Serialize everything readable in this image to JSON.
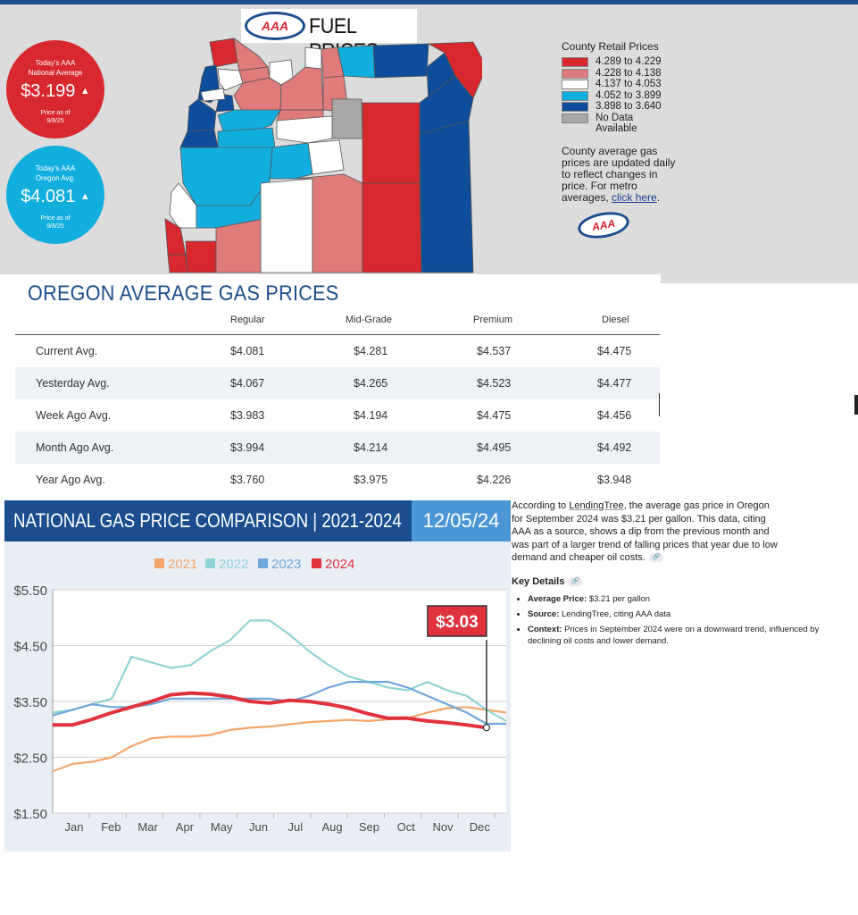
{
  "map_panel": {
    "title": "FUEL PRICES",
    "aaa_logo_text": "AAA",
    "national": {
      "label_line1": "Today's AAA",
      "label_line2": "National Average",
      "value": "$3.199",
      "asof_line1": "Price as of",
      "asof_line2": "9/8/25",
      "color": "#d7282f",
      "trend": "up"
    },
    "oregon": {
      "label_line1": "Today's AAA",
      "label_line2": "Oregon Avg.",
      "value": "$4.081",
      "asof_line1": "Price as of",
      "asof_line2": "9/8/25",
      "color": "#12aede",
      "trend": "up"
    },
    "legend": {
      "title": "County Retail Prices",
      "items": [
        {
          "label": "4.289 to 4.229",
          "color": "#d7282f"
        },
        {
          "label": "4.228 to 4.138",
          "color": "#e07b7b"
        },
        {
          "label": "4.137 to 4.053",
          "color": "#ffffff"
        },
        {
          "label": "4.052 to 3.899",
          "color": "#12aede"
        },
        {
          "label": "3.898 to 3.640",
          "color": "#0d4d9a"
        },
        {
          "label": "No Data Available",
          "color": "#a8a8a8"
        }
      ],
      "note_text": "County average gas prices are updated daily to reflect changes in price. For metro averages, ",
      "note_link": "click here",
      "note_end": "."
    }
  },
  "price_table": {
    "title": "OREGON AVERAGE GAS PRICES",
    "columns": [
      "Regular",
      "Mid-Grade",
      "Premium",
      "Diesel"
    ],
    "rows": [
      {
        "label": "Current Avg.",
        "values": [
          "$4.081",
          "$4.281",
          "$4.537",
          "$4.475"
        ]
      },
      {
        "label": "Yesterday Avg.",
        "values": [
          "$4.067",
          "$4.265",
          "$4.523",
          "$4.477"
        ]
      },
      {
        "label": "Week Ago Avg.",
        "values": [
          "$3.983",
          "$4.194",
          "$4.475",
          "$4.456"
        ]
      },
      {
        "label": "Month Ago Avg.",
        "values": [
          "$3.994",
          "$4.214",
          "$4.495",
          "$4.492"
        ]
      },
      {
        "label": "Year Ago Avg.",
        "values": [
          "$3.760",
          "$3.975",
          "$4.226",
          "$3.948"
        ]
      }
    ]
  },
  "national_chart": {
    "title": "NATIONAL GAS PRICE COMPARISON | 2021-2024",
    "date": "12/05/24",
    "callout": "$3.03",
    "colors": {
      "2021": "#f4a56a",
      "2022": "#8fd4d4",
      "2023": "#6fa6db",
      "2024": "#e0323d",
      "callout_bg": "#e0323d",
      "header": "#1b4d8f",
      "date_box": "#4b97d6"
    }
  },
  "chart_data": {
    "type": "line",
    "title": "NATIONAL GAS PRICE COMPARISON | 2021-2024",
    "ylim": [
      1.5,
      5.5
    ],
    "y_ticks": [
      "$5.50",
      "$4.50",
      "$3.50",
      "$2.50",
      "$1.50"
    ],
    "categories": [
      "Jan",
      "Feb",
      "Mar",
      "Apr",
      "May",
      "Jun",
      "Jul",
      "Aug",
      "Sep",
      "Oct",
      "Nov",
      "Dec"
    ],
    "grid": true,
    "legend_position": "top",
    "series": [
      {
        "name": "2021",
        "x": [
          0.0,
          0.5,
          1.0,
          1.5,
          2.0,
          2.5,
          3.0,
          3.5,
          4.0,
          4.5,
          5.0,
          5.5,
          6.0,
          6.5,
          7.0,
          7.5,
          8.0,
          8.5,
          9.0,
          9.5,
          10.0,
          10.5,
          11.0,
          11.5
        ],
        "values": [
          2.25,
          2.38,
          2.42,
          2.5,
          2.7,
          2.84,
          2.87,
          2.87,
          2.9,
          2.99,
          3.03,
          3.05,
          3.09,
          3.13,
          3.15,
          3.17,
          3.15,
          3.18,
          3.2,
          3.3,
          3.38,
          3.4,
          3.35,
          3.3
        ]
      },
      {
        "name": "2022",
        "x": [
          0.0,
          0.5,
          1.0,
          1.5,
          2.0,
          2.5,
          3.0,
          3.5,
          4.0,
          4.5,
          5.0,
          5.5,
          6.0,
          6.5,
          7.0,
          7.5,
          8.0,
          8.5,
          9.0,
          9.5,
          10.0,
          10.5,
          11.0,
          11.5
        ],
        "values": [
          3.3,
          3.35,
          3.45,
          3.55,
          4.3,
          4.2,
          4.1,
          4.15,
          4.4,
          4.6,
          4.95,
          4.95,
          4.7,
          4.4,
          4.15,
          3.95,
          3.85,
          3.75,
          3.7,
          3.85,
          3.7,
          3.6,
          3.35,
          3.15
        ]
      },
      {
        "name": "2023",
        "x": [
          0.0,
          0.5,
          1.0,
          1.5,
          2.0,
          2.5,
          3.0,
          3.5,
          4.0,
          4.5,
          5.0,
          5.5,
          6.0,
          6.5,
          7.0,
          7.5,
          8.0,
          8.5,
          9.0,
          9.5,
          10.0,
          10.5,
          11.0,
          11.5
        ],
        "values": [
          3.25,
          3.35,
          3.45,
          3.4,
          3.4,
          3.45,
          3.55,
          3.55,
          3.55,
          3.55,
          3.55,
          3.55,
          3.5,
          3.6,
          3.75,
          3.85,
          3.85,
          3.85,
          3.75,
          3.6,
          3.45,
          3.3,
          3.1,
          3.1
        ]
      },
      {
        "name": "2024",
        "x": [
          0.0,
          0.5,
          1.0,
          1.5,
          2.0,
          2.5,
          3.0,
          3.5,
          4.0,
          4.5,
          5.0,
          5.5,
          6.0,
          6.5,
          7.0,
          7.5,
          8.0,
          8.5,
          9.0,
          9.5,
          10.0,
          10.5,
          11.0
        ],
        "values": [
          3.08,
          3.08,
          3.18,
          3.3,
          3.4,
          3.5,
          3.62,
          3.65,
          3.63,
          3.58,
          3.5,
          3.47,
          3.52,
          3.5,
          3.45,
          3.38,
          3.28,
          3.2,
          3.2,
          3.15,
          3.12,
          3.08,
          3.03
        ]
      }
    ],
    "annotations": [
      "$3.03"
    ]
  },
  "side_text": {
    "para_start": "According to ",
    "para_link": "LendingTree",
    "para_end": ", the average gas price in Oregon for September 2024 was $3.21 per gallon. This data, citing AAA as a source, shows a dip from the previous month and was part of a larger trend of falling prices that year due to low demand and cheaper oil costs.",
    "key_details_title": "Key Details",
    "bullets": [
      {
        "label": "Average Price:",
        "text": " $3.21 per gallon"
      },
      {
        "label": "Source:",
        "text": " LendingTree, citing AAA data"
      },
      {
        "label": "Context:",
        "text": " Prices in September 2024 were on a downward trend, influenced by declining oil costs and lower demand."
      }
    ]
  }
}
